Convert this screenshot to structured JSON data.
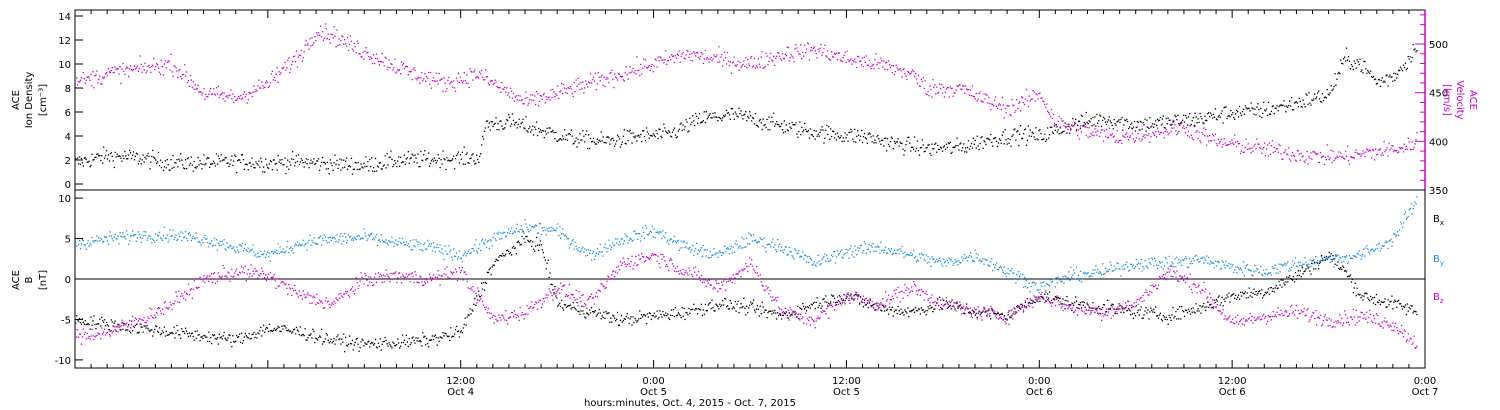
{
  "chart_data": [
    {
      "type": "scatter",
      "panel": "top",
      "ylabel_lines": [
        "ACE",
        "Ion Density",
        "[cm⁻³]"
      ],
      "y2label_lines": [
        "ACE",
        "Velocity",
        "[km/s]"
      ],
      "ylim": [
        -0.5,
        14.5
      ],
      "y2lim": [
        350,
        535
      ],
      "yticks": [
        0,
        2,
        4,
        6,
        8,
        10,
        12,
        14
      ],
      "y2ticks": [
        350,
        400,
        450,
        500
      ],
      "xlim_hours": [
        -12,
        72
      ],
      "grid": false,
      "series": [
        {
          "axis": "left",
          "color": "#000000",
          "keypoints": [
            [
              -12,
              1.8
            ],
            [
              -10,
              2.4
            ],
            [
              -8,
              2.2
            ],
            [
              -6,
              1.8
            ],
            [
              -4,
              1.8
            ],
            [
              -2,
              1.9
            ],
            [
              0,
              1.8
            ],
            [
              2,
              1.9
            ],
            [
              4,
              1.7
            ],
            [
              6,
              1.6
            ],
            [
              8,
              2.0
            ],
            [
              10,
              2.1
            ],
            [
              12,
              2.2
            ],
            [
              13.2,
              2.3
            ],
            [
              13.5,
              5.0
            ],
            [
              15,
              5.2
            ],
            [
              17,
              4.5
            ],
            [
              19,
              3.8
            ],
            [
              21,
              3.6
            ],
            [
              23,
              4.0
            ],
            [
              25,
              4.2
            ],
            [
              27,
              5.5
            ],
            [
              29,
              5.8
            ],
            [
              31,
              5.2
            ],
            [
              33,
              4.6
            ],
            [
              35,
              4.2
            ],
            [
              37,
              4.0
            ],
            [
              39,
              3.4
            ],
            [
              41,
              3.0
            ],
            [
              43,
              3.1
            ],
            [
              45,
              3.8
            ],
            [
              47,
              4.2
            ],
            [
              48,
              4.0
            ],
            [
              50,
              5.0
            ],
            [
              52,
              5.5
            ],
            [
              54,
              5.0
            ],
            [
              56,
              5.2
            ],
            [
              58,
              5.5
            ],
            [
              60,
              6.0
            ],
            [
              62,
              6.2
            ],
            [
              64,
              6.8
            ],
            [
              66,
              7.5
            ],
            [
              67,
              10.5
            ],
            [
              68,
              10.0
            ],
            [
              69,
              8.5
            ],
            [
              70,
              9.0
            ],
            [
              71,
              10.5
            ],
            [
              71.5,
              12.0
            ]
          ],
          "noise": 0.7
        },
        {
          "axis": "right",
          "color": "#cc00cc",
          "keypoints": [
            [
              -12,
              460
            ],
            [
              -10,
              470
            ],
            [
              -8,
              475
            ],
            [
              -6,
              480
            ],
            [
              -4,
              450
            ],
            [
              -2,
              445
            ],
            [
              0,
              460
            ],
            [
              2,
              490
            ],
            [
              3,
              515
            ],
            [
              4,
              510
            ],
            [
              5,
              500
            ],
            [
              7,
              485
            ],
            [
              9,
              470
            ],
            [
              11,
              460
            ],
            [
              13,
              470
            ],
            [
              14,
              460
            ],
            [
              16,
              440
            ],
            [
              18,
              450
            ],
            [
              20,
              460
            ],
            [
              22,
              470
            ],
            [
              24,
              480
            ],
            [
              26,
              490
            ],
            [
              28,
              485
            ],
            [
              30,
              480
            ],
            [
              32,
              490
            ],
            [
              34,
              495
            ],
            [
              36,
              485
            ],
            [
              38,
              480
            ],
            [
              40,
              470
            ],
            [
              41,
              455
            ],
            [
              43,
              455
            ],
            [
              45,
              440
            ],
            [
              46,
              435
            ],
            [
              47,
              440
            ],
            [
              48,
              450
            ],
            [
              49,
              420
            ],
            [
              51,
              410
            ],
            [
              53,
              405
            ],
            [
              55,
              410
            ],
            [
              57,
              415
            ],
            [
              59,
              400
            ],
            [
              61,
              395
            ],
            [
              63,
              390
            ],
            [
              65,
              385
            ],
            [
              67,
              385
            ],
            [
              69,
              390
            ],
            [
              71,
              395
            ],
            [
              71.5,
              405
            ]
          ],
          "noise": 9
        }
      ]
    },
    {
      "type": "scatter",
      "panel": "bottom",
      "ylabel_lines": [
        "ACE",
        "B",
        "[nT]"
      ],
      "ylim": [
        -11,
        11
      ],
      "yticks": [
        -10,
        -5,
        0,
        5,
        10
      ],
      "xlim_hours": [
        -12,
        72
      ],
      "grid": false,
      "zero_line": true,
      "xtick_labels": [
        {
          "hours": 12,
          "time": "12:00",
          "day": "Oct 4"
        },
        {
          "hours": 24,
          "time": "0:00",
          "day": "Oct 5"
        },
        {
          "hours": 36,
          "time": "12:00",
          "day": "Oct 5"
        },
        {
          "hours": 48,
          "time": "0:00",
          "day": "Oct 6"
        },
        {
          "hours": 60,
          "time": "12:00",
          "day": "Oct 6"
        },
        {
          "hours": 72,
          "time": "0:00",
          "day": "Oct 7"
        }
      ],
      "xlabel": "hours:minutes, Oct.  4, 2015 - Oct.  7, 2015",
      "series": [
        {
          "name": "Bx",
          "color": "#000000",
          "keypoints": [
            [
              -12,
              -5.0
            ],
            [
              -10,
              -5.5
            ],
            [
              -8,
              -6.0
            ],
            [
              -6,
              -6.5
            ],
            [
              -4,
              -7.0
            ],
            [
              -2,
              -7.5
            ],
            [
              0,
              -6.0
            ],
            [
              2,
              -6.5
            ],
            [
              4,
              -7.5
            ],
            [
              6,
              -8.0
            ],
            [
              8,
              -7.8
            ],
            [
              10,
              -7.5
            ],
            [
              12,
              -6.5
            ],
            [
              14,
              2.0
            ],
            [
              16,
              5.0
            ],
            [
              17,
              4.0
            ],
            [
              18,
              -3.0
            ],
            [
              20,
              -4.0
            ],
            [
              22,
              -5.0
            ],
            [
              24,
              -4.5
            ],
            [
              26,
              -4.0
            ],
            [
              28,
              -3.0
            ],
            [
              30,
              -3.5
            ],
            [
              32,
              -4.5
            ],
            [
              34,
              -3.0
            ],
            [
              36,
              -2.0
            ],
            [
              38,
              -3.5
            ],
            [
              40,
              -4.0
            ],
            [
              42,
              -3.0
            ],
            [
              44,
              -4.0
            ],
            [
              46,
              -4.5
            ],
            [
              48,
              -2.0
            ],
            [
              50,
              -3.0
            ],
            [
              52,
              -3.5
            ],
            [
              54,
              -4.0
            ],
            [
              56,
              -4.5
            ],
            [
              58,
              -3.5
            ],
            [
              60,
              -2.0
            ],
            [
              62,
              -1.5
            ],
            [
              64,
              0.5
            ],
            [
              66,
              3.0
            ],
            [
              67,
              1.0
            ],
            [
              68,
              -2.0
            ],
            [
              70,
              -3.0
            ],
            [
              71.5,
              -4.0
            ]
          ],
          "noise": 0.8
        },
        {
          "name": "By",
          "color": "#1a8fe0",
          "keypoints": [
            [
              -12,
              4.5
            ],
            [
              -10,
              5.0
            ],
            [
              -8,
              5.5
            ],
            [
              -6,
              5.5
            ],
            [
              -4,
              5.0
            ],
            [
              -2,
              4.0
            ],
            [
              0,
              3.0
            ],
            [
              2,
              4.5
            ],
            [
              4,
              5.0
            ],
            [
              6,
              5.2
            ],
            [
              8,
              4.5
            ],
            [
              10,
              4.0
            ],
            [
              12,
              3.0
            ],
            [
              14,
              5.0
            ],
            [
              16,
              6.5
            ],
            [
              18,
              6.0
            ],
            [
              20,
              3.0
            ],
            [
              22,
              5.0
            ],
            [
              24,
              6.0
            ],
            [
              26,
              4.0
            ],
            [
              28,
              3.0
            ],
            [
              30,
              5.0
            ],
            [
              32,
              4.0
            ],
            [
              34,
              2.0
            ],
            [
              36,
              3.5
            ],
            [
              38,
              4.0
            ],
            [
              40,
              3.0
            ],
            [
              42,
              2.0
            ],
            [
              44,
              3.0
            ],
            [
              46,
              1.0
            ],
            [
              48,
              -1.0
            ],
            [
              50,
              0.5
            ],
            [
              52,
              1.0
            ],
            [
              54,
              2.0
            ],
            [
              56,
              2.0
            ],
            [
              58,
              2.5
            ],
            [
              60,
              1.5
            ],
            [
              62,
              1.0
            ],
            [
              64,
              2.0
            ],
            [
              66,
              2.5
            ],
            [
              68,
              3.0
            ],
            [
              70,
              5.0
            ],
            [
              71.5,
              10.0
            ]
          ],
          "noise": 0.8
        },
        {
          "name": "Bz",
          "color": "#cc00cc",
          "keypoints": [
            [
              -12,
              -7.0
            ],
            [
              -10,
              -6.5
            ],
            [
              -8,
              -5.0
            ],
            [
              -6,
              -3.0
            ],
            [
              -4,
              0.0
            ],
            [
              -2,
              1.0
            ],
            [
              0,
              0.5
            ],
            [
              2,
              -2.0
            ],
            [
              4,
              -3.0
            ],
            [
              6,
              0.0
            ],
            [
              8,
              0.5
            ],
            [
              10,
              0.0
            ],
            [
              12,
              1.0
            ],
            [
              14,
              -5.0
            ],
            [
              16,
              -4.0
            ],
            [
              18,
              -1.0
            ],
            [
              20,
              -3.0
            ],
            [
              22,
              2.0
            ],
            [
              24,
              3.0
            ],
            [
              26,
              1.0
            ],
            [
              28,
              -1.0
            ],
            [
              30,
              2.0
            ],
            [
              32,
              -4.0
            ],
            [
              34,
              -5.0
            ],
            [
              36,
              -2.0
            ],
            [
              38,
              -3.0
            ],
            [
              40,
              -1.0
            ],
            [
              42,
              -3.0
            ],
            [
              44,
              -4.0
            ],
            [
              46,
              -4.5
            ],
            [
              48,
              -2.0
            ],
            [
              50,
              -3.5
            ],
            [
              52,
              -4.0
            ],
            [
              54,
              -3.0
            ],
            [
              56,
              1.0
            ],
            [
              58,
              -1.0
            ],
            [
              60,
              -5.5
            ],
            [
              62,
              -4.5
            ],
            [
              64,
              -4.0
            ],
            [
              66,
              -5.0
            ],
            [
              68,
              -4.5
            ],
            [
              70,
              -5.5
            ],
            [
              71.5,
              -8.0
            ]
          ],
          "noise": 0.9
        }
      ]
    }
  ],
  "legend": [
    {
      "base": "B",
      "sub": "x",
      "color": "#000000"
    },
    {
      "base": "B",
      "sub": "y",
      "color": "#1a8fe0"
    },
    {
      "base": "B",
      "sub": "z",
      "color": "#cc00cc"
    }
  ]
}
